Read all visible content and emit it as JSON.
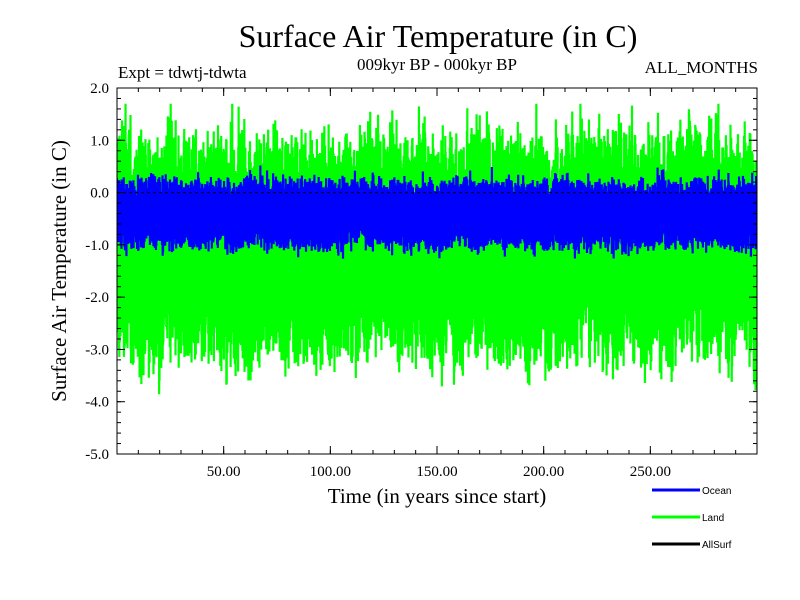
{
  "chart_data": {
    "type": "line",
    "title": "Surface Air Temperature (in C)",
    "subtitle_left": "Expt = tdwtj-tdwta",
    "subtitle_center": "009kyr BP - 000kyr BP",
    "subtitle_right": "ALL_MONTHS",
    "xlabel": "Time (in years since start)",
    "ylabel": "Surface Air Temperature (in C)",
    "xlim": [
      0,
      300
    ],
    "ylim": [
      -5.0,
      2.0
    ],
    "xticks": [
      50,
      100,
      150,
      200,
      250
    ],
    "xtick_labels": [
      "50.00",
      "100.00",
      "150.00",
      "200.00",
      "250.00"
    ],
    "yticks": [
      -5.0,
      -4.0,
      -3.0,
      -2.0,
      -1.0,
      0.0,
      1.0,
      2.0
    ],
    "ytick_labels": [
      "-5.0",
      "-4.0",
      "-3.0",
      "-2.0",
      "-1.0",
      "0.0",
      "1.0",
      "2.0"
    ],
    "zero_line": 0.0,
    "series": [
      {
        "name": "Land",
        "color": "#00ff00",
        "style": "monthly time series, dense oscillation",
        "mean": -1.0,
        "envelope_low": -4.2,
        "envelope_high": 1.7,
        "typical_low": -3.0,
        "typical_high": 0.9
      },
      {
        "name": "Ocean",
        "color": "#0000ff",
        "style": "monthly time series, dense oscillation",
        "mean": -0.4,
        "envelope_low": -1.3,
        "envelope_high": 0.6,
        "typical_low": -1.0,
        "typical_high": 0.2
      },
      {
        "name": "AllSurf",
        "color": "#000000",
        "style": "legend only",
        "mean": null
      }
    ],
    "legend": [
      "Ocean",
      "Land",
      "AllSurf"
    ],
    "legend_placement": "bottom-right"
  }
}
